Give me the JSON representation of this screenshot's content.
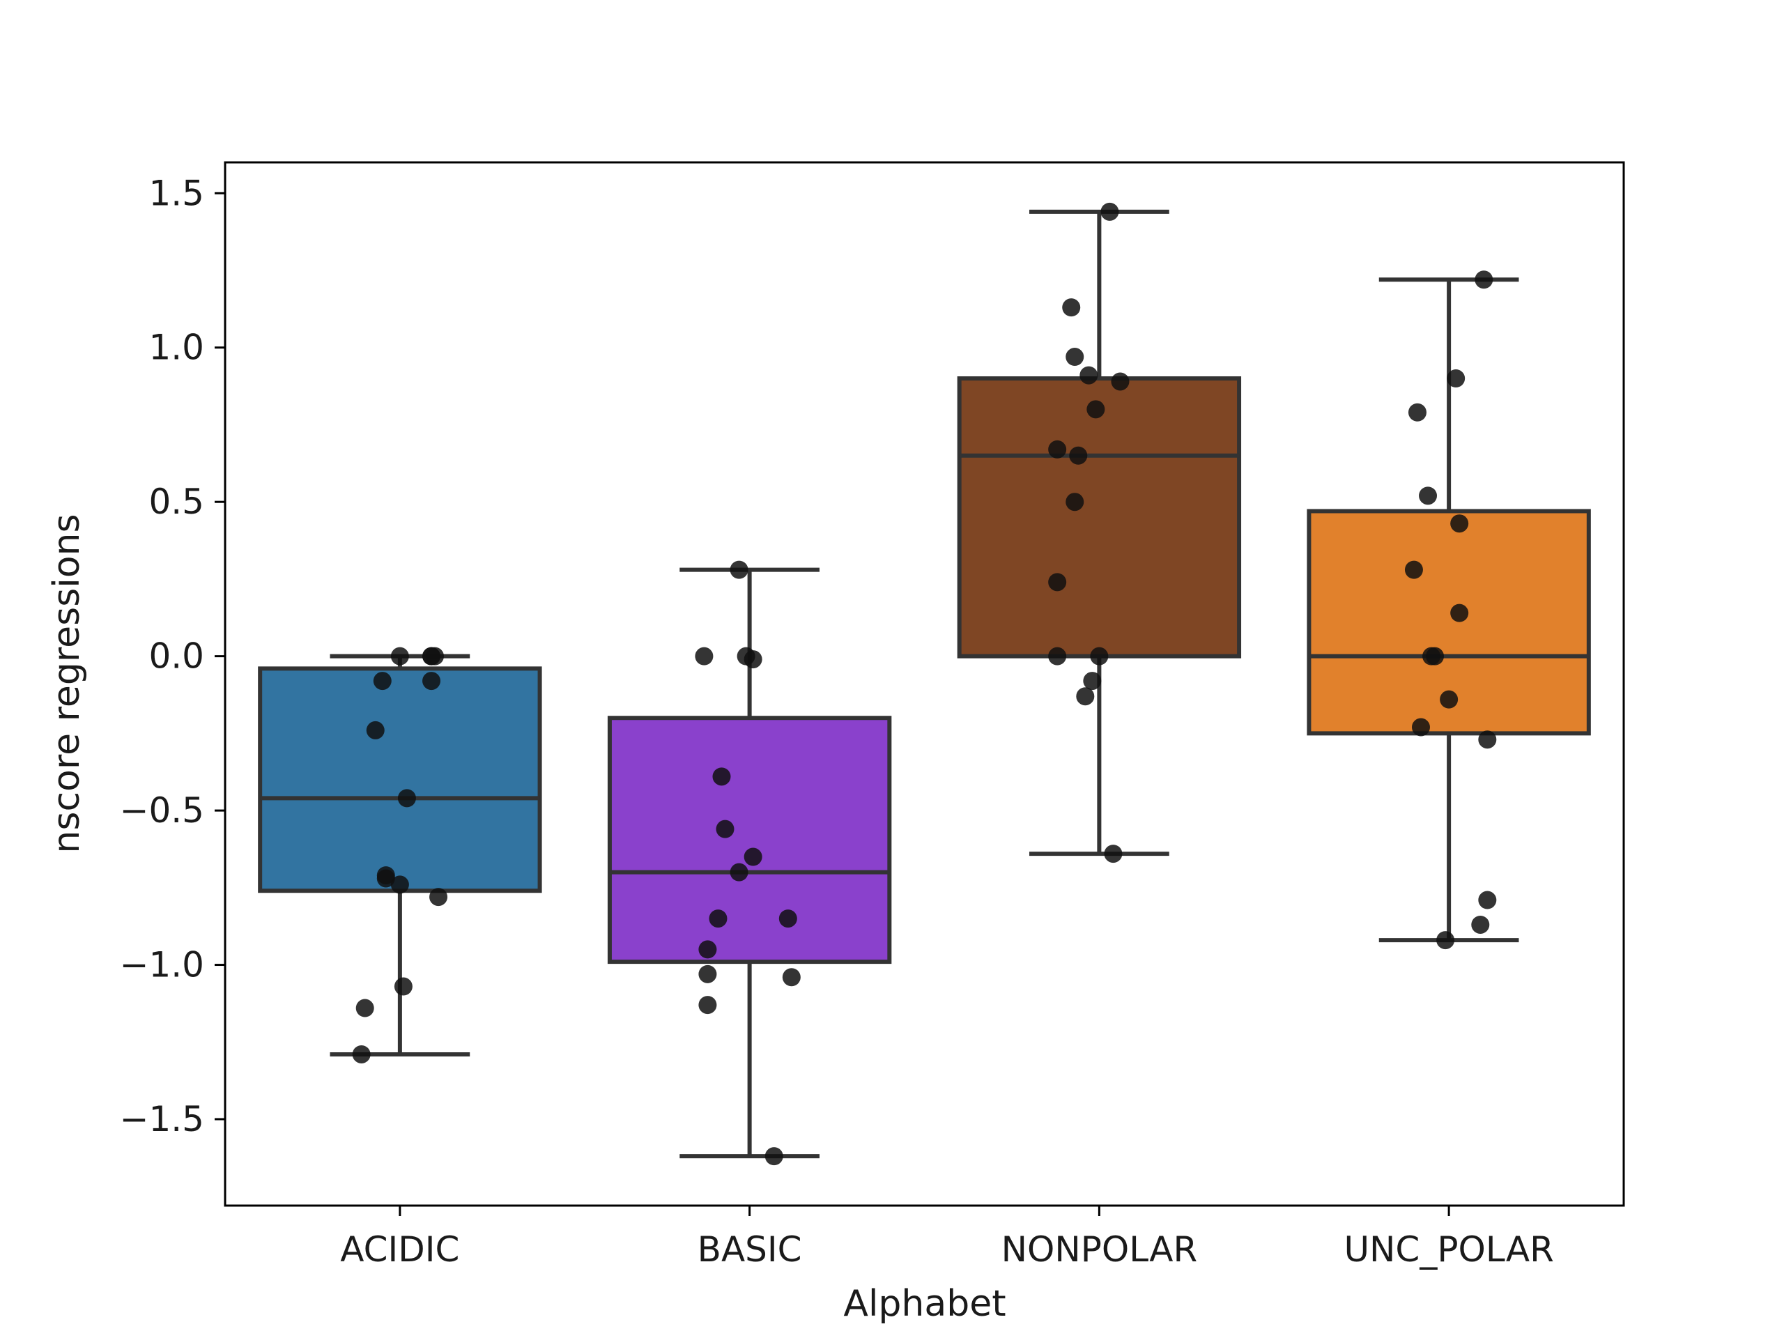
{
  "chart_data": {
    "type": "box",
    "title": "",
    "xlabel": "Alphabet",
    "ylabel": "nscore regressions",
    "ylim": [
      -1.78,
      1.6
    ],
    "yticks": [
      -1.5,
      -1.0,
      -0.5,
      0.0,
      0.5,
      1.0,
      1.5
    ],
    "ytick_labels": [
      "−1.5",
      "−1.0",
      "−0.5",
      "0.0",
      "0.5",
      "1.0",
      "1.5"
    ],
    "categories": [
      "ACIDIC",
      "BASIC",
      "NONPOLAR",
      "UNC_POLAR"
    ],
    "boxes": [
      {
        "category": "ACIDIC",
        "color": "#3274a1",
        "whisker_low": -1.29,
        "q1": -0.76,
        "median": -0.46,
        "q3": -0.04,
        "whisker_high": 0.0,
        "points": [
          0.0,
          0.0,
          0.0,
          0.0,
          -0.08,
          -0.08,
          -0.24,
          -0.46,
          -0.71,
          -0.72,
          -0.74,
          -0.78,
          -1.07,
          -1.14,
          -1.29
        ]
      },
      {
        "category": "BASIC",
        "color": "#8a41cc",
        "whisker_low": -1.62,
        "q1": -0.99,
        "median": -0.7,
        "q3": -0.2,
        "whisker_high": 0.28,
        "points": [
          0.28,
          0.0,
          0.0,
          -0.01,
          -0.39,
          -0.56,
          -0.65,
          -0.7,
          -0.85,
          -0.85,
          -0.95,
          -1.03,
          -1.04,
          -1.13,
          -1.62
        ]
      },
      {
        "category": "NONPOLAR",
        "color": "#7f4624",
        "whisker_low": -0.64,
        "q1": 0.0,
        "median": 0.65,
        "q3": 0.9,
        "whisker_high": 1.44,
        "points": [
          1.44,
          1.13,
          0.97,
          0.91,
          0.89,
          0.8,
          0.67,
          0.65,
          0.5,
          0.24,
          0.0,
          0.0,
          -0.08,
          -0.13,
          -0.64
        ]
      },
      {
        "category": "UNC_POLAR",
        "color": "#e1812c",
        "whisker_low": -0.92,
        "q1": -0.25,
        "median": 0.0,
        "q3": 0.47,
        "whisker_high": 1.22,
        "points": [
          1.22,
          0.9,
          0.79,
          0.52,
          0.43,
          0.28,
          0.14,
          0.0,
          0.0,
          -0.14,
          -0.23,
          -0.27,
          -0.79,
          -0.87,
          -0.92
        ]
      }
    ],
    "point_jitter": [
      [
        0.0,
        0.09,
        0.1,
        0.09,
        -0.05,
        0.09,
        -0.07,
        0.02,
        -0.04,
        -0.04,
        0.0,
        0.11,
        0.01,
        -0.1,
        -0.11
      ],
      [
        -0.03,
        -0.13,
        -0.01,
        0.01,
        -0.08,
        -0.07,
        0.01,
        -0.03,
        -0.09,
        0.11,
        -0.12,
        -0.12,
        0.12,
        -0.12,
        0.07
      ],
      [
        0.03,
        -0.08,
        -0.07,
        -0.03,
        0.06,
        -0.01,
        -0.12,
        -0.06,
        -0.07,
        -0.12,
        -0.12,
        0.0,
        -0.02,
        -0.04,
        0.04
      ],
      [
        0.1,
        0.02,
        -0.09,
        -0.06,
        0.03,
        -0.1,
        0.03,
        -0.05,
        -0.04,
        0.0,
        -0.08,
        0.11,
        0.11,
        0.09,
        -0.01
      ]
    ],
    "point_color": "#111111",
    "line_color": "#333333",
    "grid": false,
    "legend": "none"
  }
}
